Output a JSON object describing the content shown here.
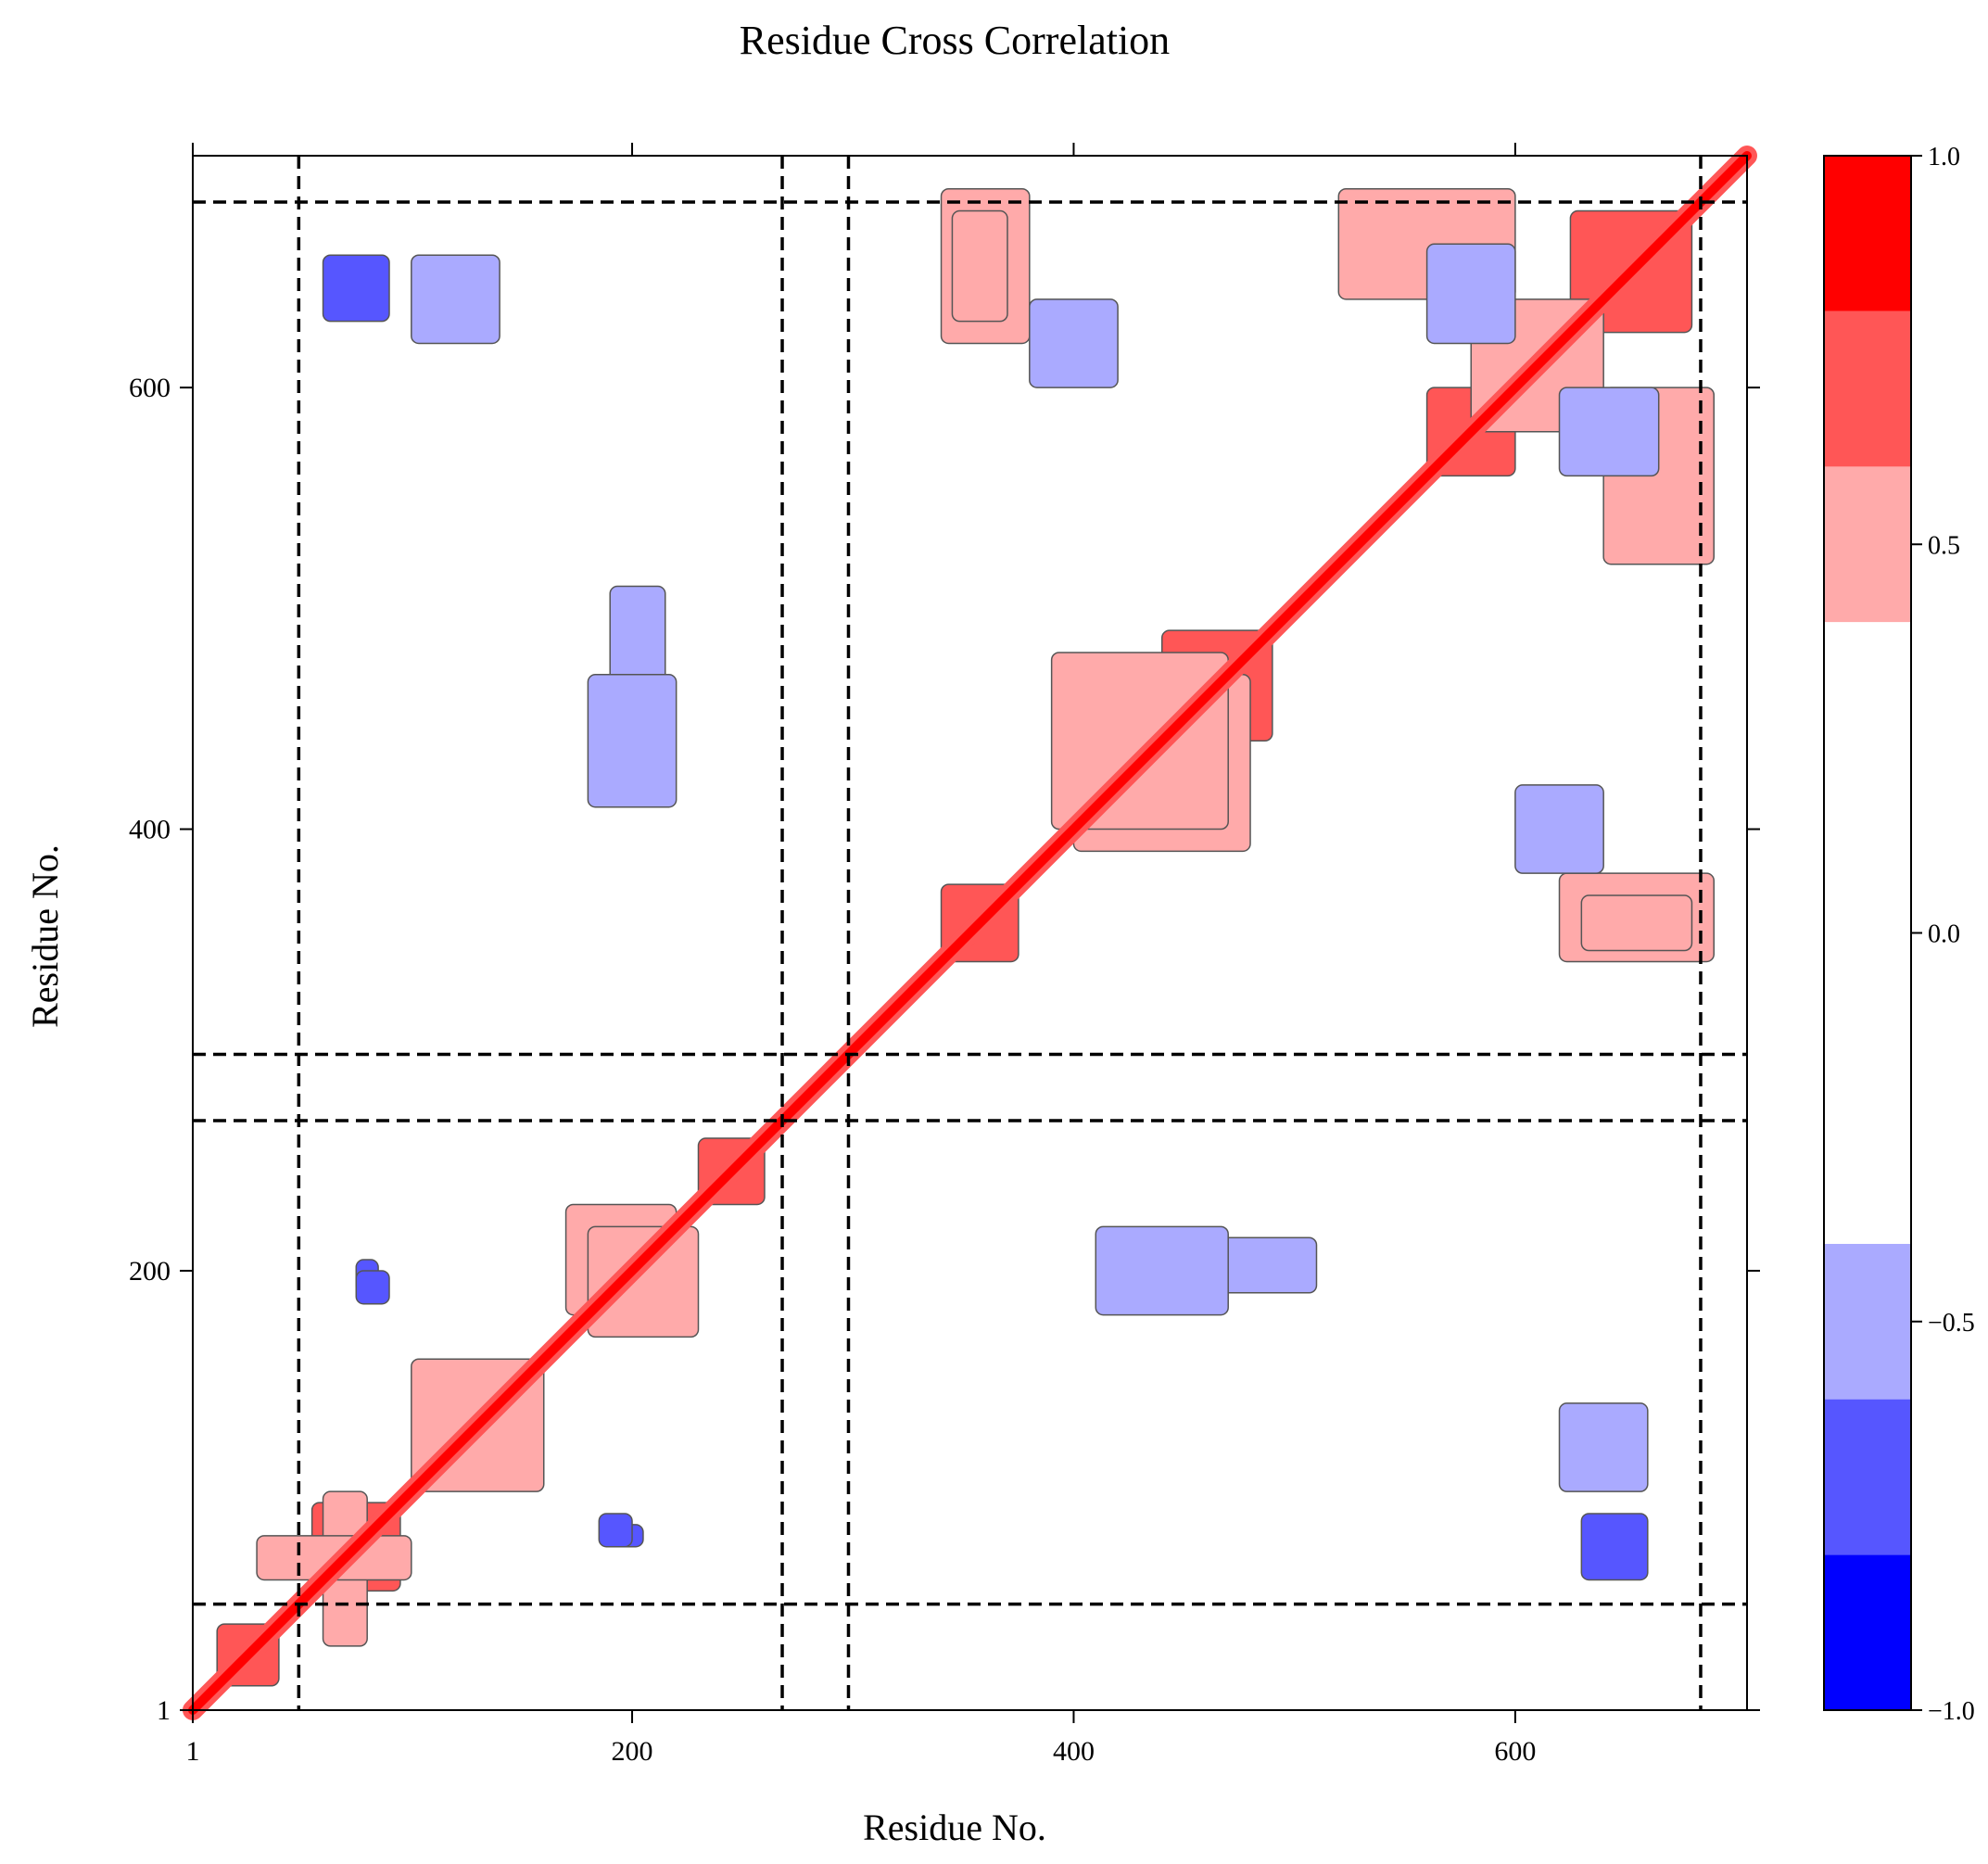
{
  "chart_data": {
    "type": "heatmap",
    "title": "Residue Cross Correlation",
    "xlabel": "Residue No.",
    "ylabel": "Residue No.",
    "xlim": [
      1,
      705
    ],
    "ylim": [
      1,
      705
    ],
    "x_ticks": [
      1,
      200,
      400,
      600
    ],
    "y_ticks": [
      1,
      200,
      400,
      600
    ],
    "x_tick_labels": [
      "1",
      "200",
      "400",
      "600"
    ],
    "y_tick_labels": [
      "1",
      "200",
      "400",
      "600"
    ],
    "colorbar": {
      "range": [
        -1.0,
        1.0
      ],
      "tick_values": [
        1.0,
        0.5,
        0.0,
        -0.5,
        -1.0
      ],
      "tick_labels": [
        "1.0",
        "0.5",
        "0.0",
        "−0.5",
        "−1.0"
      ],
      "bins": [
        {
          "from": -1.0,
          "to": -0.8,
          "color": "#0000ff"
        },
        {
          "from": -0.8,
          "to": -0.6,
          "color": "#5656ff"
        },
        {
          "from": -0.6,
          "to": -0.4,
          "color": "#aaaaff"
        },
        {
          "from": -0.4,
          "to": 0.4,
          "color": "#ffffff"
        },
        {
          "from": 0.4,
          "to": 0.6,
          "color": "#ffaaaa"
        },
        {
          "from": 0.6,
          "to": 0.8,
          "color": "#ff5656"
        },
        {
          "from": 0.8,
          "to": 1.0,
          "color": "#ff0000"
        }
      ]
    },
    "domain_boundaries": [
      49,
      268,
      298,
      684
    ],
    "diagonal": {
      "from": 1,
      "to": 705,
      "value": 1.0
    },
    "regions": [
      {
        "x": [
          12,
          40
        ],
        "y": [
          12,
          40
        ],
        "value": 0.7
      },
      {
        "x": [
          55,
          95
        ],
        "y": [
          55,
          95
        ],
        "value": 0.7
      },
      {
        "x": [
          100,
          160
        ],
        "y": [
          100,
          160
        ],
        "value": 0.6
      },
      {
        "x": [
          190,
          215
        ],
        "y": [
          185,
          215
        ],
        "value": 0.7
      },
      {
        "x": [
          230,
          260
        ],
        "y": [
          230,
          260
        ],
        "value": 0.7
      },
      {
        "x": [
          340,
          375
        ],
        "y": [
          340,
          375
        ],
        "value": 0.8
      },
      {
        "x": [
          440,
          490
        ],
        "y": [
          440,
          490
        ],
        "value": 0.7
      },
      {
        "x": [
          560,
          600
        ],
        "y": [
          560,
          600
        ],
        "value": 0.7
      },
      {
        "x": [
          625,
          680
        ],
        "y": [
          625,
          680
        ],
        "value": 0.7
      },
      {
        "x": [
          340,
          380
        ],
        "y": [
          620,
          690
        ],
        "value": 0.6
      },
      {
        "x": [
          620,
          690
        ],
        "y": [
          340,
          380
        ],
        "value": 0.6
      },
      {
        "x": [
          630,
          680
        ],
        "y": [
          345,
          370
        ],
        "value": 0.6
      },
      {
        "x": [
          345,
          370
        ],
        "y": [
          630,
          680
        ],
        "value": 0.6
      },
      {
        "x": [
          400,
          480
        ],
        "y": [
          390,
          470
        ],
        "value": 0.5
      },
      {
        "x": [
          390,
          470
        ],
        "y": [
          400,
          480
        ],
        "value": 0.5
      },
      {
        "x": [
          580,
          640
        ],
        "y": [
          580,
          640
        ],
        "value": 0.5
      },
      {
        "x": [
          520,
          600
        ],
        "y": [
          640,
          690
        ],
        "value": 0.5
      },
      {
        "x": [
          640,
          690
        ],
        "y": [
          520,
          600
        ],
        "value": 0.5
      },
      {
        "x": [
          60,
          80
        ],
        "y": [
          30,
          100
        ],
        "value": 0.5
      },
      {
        "x": [
          30,
          100
        ],
        "y": [
          60,
          80
        ],
        "value": 0.5
      },
      {
        "x": [
          170,
          220
        ],
        "y": [
          180,
          230
        ],
        "value": 0.5
      },
      {
        "x": [
          180,
          230
        ],
        "y": [
          170,
          220
        ],
        "value": 0.5
      },
      {
        "x": [
          75,
          85
        ],
        "y": [
          190,
          205
        ],
        "value": -0.7
      },
      {
        "x": [
          190,
          205
        ],
        "y": [
          75,
          85
        ],
        "value": -0.7
      },
      {
        "x": [
          185,
          200
        ],
        "y": [
          75,
          90
        ],
        "value": -0.6
      },
      {
        "x": [
          75,
          90
        ],
        "y": [
          185,
          200
        ],
        "value": -0.6
      },
      {
        "x": [
          190,
          215
        ],
        "y": [
          440,
          510
        ],
        "value": -0.5
      },
      {
        "x": [
          440,
          510
        ],
        "y": [
          190,
          215
        ],
        "value": -0.5
      },
      {
        "x": [
          560,
          600
        ],
        "y": [
          620,
          665
        ],
        "value": -0.5
      },
      {
        "x": [
          620,
          665
        ],
        "y": [
          560,
          600
        ],
        "value": -0.5
      },
      {
        "x": [
          600,
          640
        ],
        "y": [
          380,
          420
        ],
        "value": -0.5
      },
      {
        "x": [
          380,
          420
        ],
        "y": [
          600,
          640
        ],
        "value": -0.5
      },
      {
        "x": [
          630,
          660
        ],
        "y": [
          60,
          90
        ],
        "value": -0.6
      },
      {
        "x": [
          60,
          90
        ],
        "y": [
          630,
          660
        ],
        "value": -0.6
      },
      {
        "x": [
          410,
          470
        ],
        "y": [
          180,
          220
        ],
        "value": -0.5
      },
      {
        "x": [
          180,
          220
        ],
        "y": [
          410,
          470
        ],
        "value": -0.5
      },
      {
        "x": [
          100,
          140
        ],
        "y": [
          620,
          660
        ],
        "value": -0.5
      },
      {
        "x": [
          620,
          660
        ],
        "y": [
          100,
          140
        ],
        "value": -0.5
      }
    ]
  }
}
